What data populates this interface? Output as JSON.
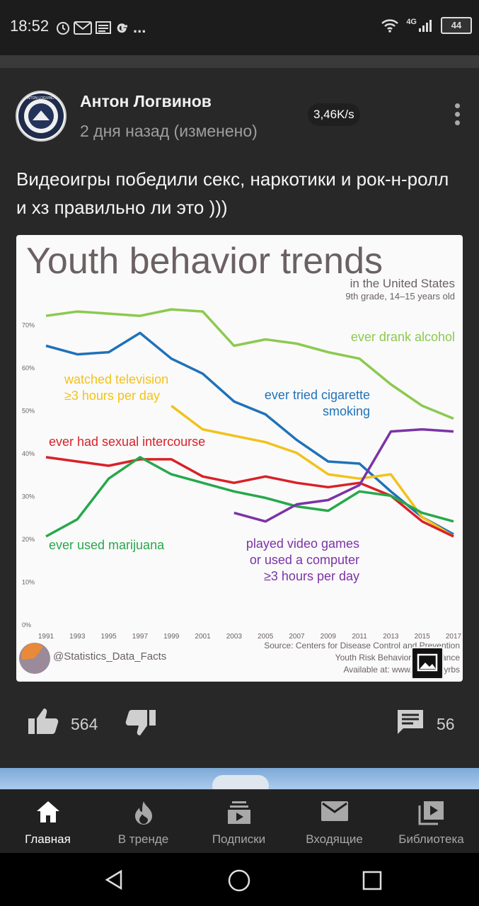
{
  "status_bar": {
    "time": "18:52",
    "left_icons": [
      "alarm-icon",
      "gmail-icon",
      "news-icon",
      "google-icon",
      "more-icon"
    ],
    "more_label": "...",
    "network_label": "4G",
    "battery": "44"
  },
  "post": {
    "author": "Антон Логвинов",
    "avatar_text": "ANTON LOGVINOV",
    "date": "2 дня назад (изменено)",
    "speed_badge": "3,46K/s",
    "text": "Видеоигры победили секс, наркотики и рок-н-ролл и хз правильно ли это )))",
    "likes": "564",
    "comments": "56"
  },
  "chart_data": {
    "type": "line",
    "title": "Youth behavior trends",
    "subtitle_lines": [
      "in the United States",
      "9th grade, 14–15 years old"
    ],
    "x": [
      1991,
      1993,
      1995,
      1997,
      1999,
      2001,
      2003,
      2005,
      2007,
      2009,
      2011,
      2013,
      2015,
      2017
    ],
    "x_tick_labels": [
      "1991",
      "1993",
      "1995",
      "1997",
      "1999",
      "2001",
      "2003",
      "2005",
      "2007",
      "2009",
      "2011",
      "2013",
      "2015",
      "2017"
    ],
    "y_ticks": [
      0,
      10,
      20,
      30,
      40,
      50,
      60,
      70
    ],
    "y_tick_labels": [
      "0%",
      "10%",
      "20%",
      "30%",
      "40%",
      "50%",
      "60%",
      "70%"
    ],
    "ylim": [
      0,
      75
    ],
    "grid": false,
    "legend": "inline labels",
    "series": [
      {
        "name": "ever drank alcohol",
        "color": "#8cc94f",
        "values": [
          72,
          73,
          72.5,
          72,
          73.5,
          73,
          65,
          66.5,
          65.5,
          63.5,
          62,
          56,
          51,
          48
        ]
      },
      {
        "name": "ever tried cigarette smoking",
        "color": "#1f72b8",
        "values": [
          65,
          63,
          63.5,
          68,
          62,
          58.5,
          52,
          49,
          43,
          38,
          37.5,
          31,
          25,
          21
        ]
      },
      {
        "name": "watched television ≥3 hours per day",
        "color": "#f2c21b",
        "values": [
          null,
          null,
          null,
          null,
          51,
          45.5,
          44,
          42.5,
          40,
          35,
          34,
          35,
          25,
          20.5
        ]
      },
      {
        "name": "ever had sexual intercourse",
        "color": "#d92127",
        "values": [
          39,
          38,
          37,
          38.5,
          38.5,
          34.5,
          33,
          34.5,
          33,
          32,
          33,
          30,
          24,
          20.5
        ]
      },
      {
        "name": "ever used marijuana",
        "color": "#27a84b",
        "values": [
          20.5,
          24.5,
          34,
          39,
          35,
          33,
          31,
          29.5,
          27.5,
          26.5,
          31,
          30,
          26,
          24
        ]
      },
      {
        "name": "played video games or used a computer ≥3 hours per day",
        "color": "#7b33a7",
        "values": [
          null,
          null,
          null,
          null,
          null,
          null,
          26,
          24,
          28,
          29,
          32.5,
          45,
          45.5,
          45
        ]
      }
    ],
    "series_labels": [
      {
        "lines": [
          "ever drank alcohol"
        ],
        "color": "#8cc94f"
      },
      {
        "lines": [
          "ever tried cigarette",
          "smoking"
        ],
        "color": "#1f72b8"
      },
      {
        "lines": [
          "watched television",
          "≥3 hours per day"
        ],
        "color": "#f2c21b"
      },
      {
        "lines": [
          "ever had sexual intercourse"
        ],
        "color": "#d92127"
      },
      {
        "lines": [
          "ever used marijuana"
        ],
        "color": "#27a84b"
      },
      {
        "lines": [
          "played video games",
          "or used a computer",
          "≥3 hours per day"
        ],
        "color": "#7b33a7"
      }
    ],
    "watermark": "@Statistics_Data_Facts",
    "source_lines": [
      "Source: Centers for Disease Control and Prevention",
      "Youth Risk Behavior Surveillance",
      "Available at: www.cdc.gov/yrbs"
    ]
  },
  "bottom_nav": [
    {
      "label": "Главная",
      "icon": "home-icon",
      "active": true
    },
    {
      "label": "В тренде",
      "icon": "trending-fire-icon",
      "active": false
    },
    {
      "label": "Подписки",
      "icon": "subscriptions-icon",
      "active": false
    },
    {
      "label": "Входящие",
      "icon": "inbox-mail-icon",
      "active": false
    },
    {
      "label": "Библиотека",
      "icon": "library-icon",
      "active": false
    }
  ]
}
